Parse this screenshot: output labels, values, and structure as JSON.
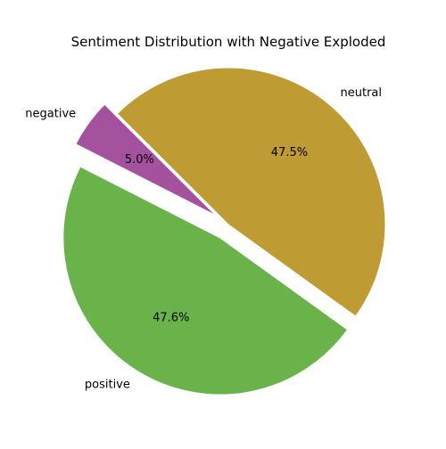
{
  "chart_data": {
    "type": "pie",
    "title": "Sentiment Distribution with Negative Exploded",
    "slices": [
      {
        "label": "neutral",
        "value": 47.5,
        "pct_text": "47.5%",
        "color": "#bf9b33",
        "exploded": false
      },
      {
        "label": "positive",
        "value": 47.6,
        "pct_text": "47.6%",
        "color": "#69b34a",
        "exploded": true
      },
      {
        "label": "negative",
        "value": 5.0,
        "pct_text": "5.0%",
        "color": "#a5529e",
        "exploded": true
      }
    ],
    "start_angle_deg": 135,
    "direction": "clockwise"
  }
}
